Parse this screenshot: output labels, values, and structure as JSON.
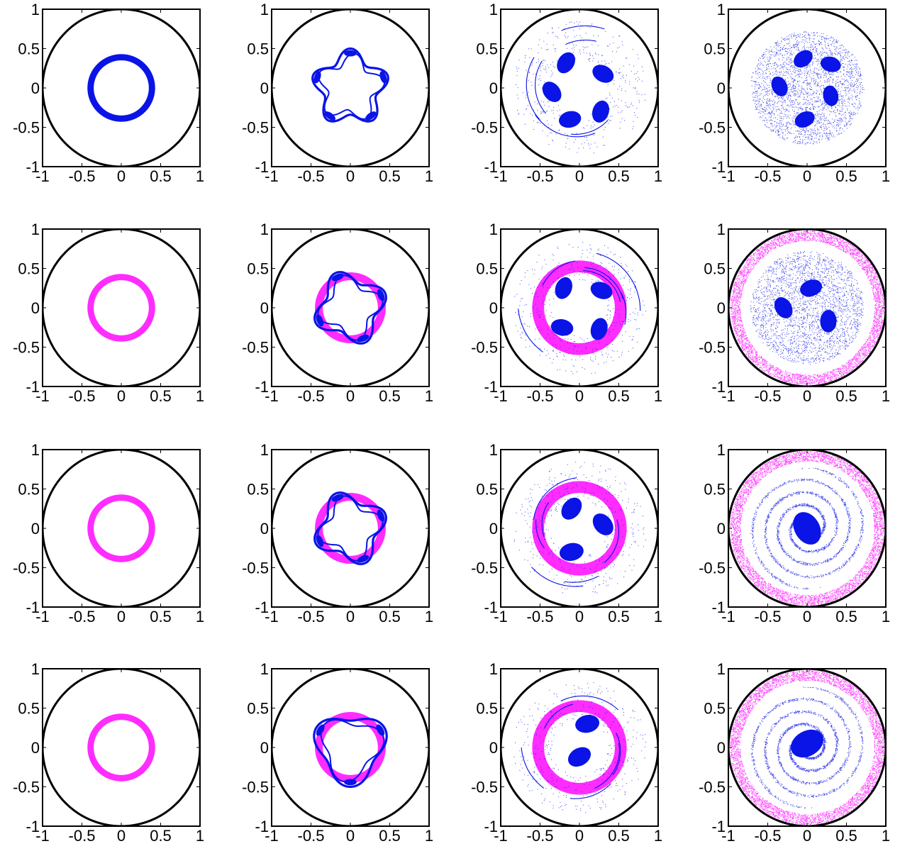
{
  "colors": {
    "vortex": "#0a14e6",
    "ring": "#ff2cff",
    "wall": "#000000",
    "axes": "#000000",
    "background": "#ffffff"
  },
  "chart_data": {
    "type": "scatter",
    "layout": "4x4 grid of panels",
    "xlim": [
      -1,
      1
    ],
    "ylim": [
      -1,
      1
    ],
    "xticks": [
      -1,
      -0.5,
      0,
      0.5,
      1
    ],
    "yticks": [
      -1,
      -0.5,
      0,
      0.5,
      1
    ],
    "xtick_labels": [
      "-1",
      "-0.5",
      "0",
      "0.5",
      "1"
    ],
    "ytick_labels": [
      "-1",
      "-0.5",
      "0",
      "0.5",
      "1"
    ],
    "grid": false,
    "boundary": {
      "shape": "circle",
      "center": [
        0,
        0
      ],
      "radius": 1
    },
    "panels": [
      {
        "row": 1,
        "col": 1,
        "ring": null,
        "vortex": {
          "kind": "annulus",
          "inner_radius": 0.35,
          "outer_radius": 0.43
        }
      },
      {
        "row": 1,
        "col": 2,
        "ring": null,
        "vortex": {
          "kind": "wavy_ring",
          "radius": 0.42,
          "modes": 5
        }
      },
      {
        "row": 1,
        "col": 3,
        "ring": null,
        "vortex": {
          "kind": "patches",
          "count": 5,
          "patch_radius": 0.13,
          "centers": [
            [
              -0.17,
              0.32
            ],
            [
              0.3,
              0.18
            ],
            [
              0.27,
              -0.3
            ],
            [
              -0.12,
              -0.4
            ],
            [
              -0.35,
              -0.05
            ]
          ],
          "filaments": "moderate"
        }
      },
      {
        "row": 1,
        "col": 4,
        "ring": null,
        "vortex": {
          "kind": "patches",
          "count": 5,
          "patch_radius": 0.12,
          "centers": [
            [
              -0.05,
              0.37
            ],
            [
              0.3,
              0.3
            ],
            [
              0.3,
              -0.1
            ],
            [
              -0.03,
              -0.4
            ],
            [
              -0.35,
              0.02
            ]
          ],
          "filaments": "dense cloud"
        }
      },
      {
        "row": 2,
        "col": 1,
        "ring": {
          "inner_radius": 0.35,
          "outer_radius": 0.43
        },
        "vortex": {
          "kind": "none"
        }
      },
      {
        "row": 2,
        "col": 2,
        "ring": {
          "inner_radius": 0.35,
          "outer_radius": 0.45
        },
        "vortex": {
          "kind": "wavy_ring",
          "radius": 0.4,
          "modes": 4
        }
      },
      {
        "row": 2,
        "col": 3,
        "ring": {
          "inner_radius": 0.45,
          "outer_radius": 0.6
        },
        "vortex": {
          "kind": "patches",
          "count": 4,
          "patch_radius": 0.13,
          "centers": [
            [
              -0.2,
              0.25
            ],
            [
              0.28,
              0.22
            ],
            [
              0.25,
              -0.27
            ],
            [
              -0.22,
              -0.25
            ]
          ],
          "filaments": "moderate"
        }
      },
      {
        "row": 2,
        "col": 4,
        "ring": {
          "inner_radius": 0.85,
          "outer_radius": 0.98
        },
        "vortex": {
          "kind": "patches",
          "count": 3,
          "patch_radius": 0.13,
          "centers": [
            [
              0.05,
              0.25
            ],
            [
              -0.3,
              0.0
            ],
            [
              0.27,
              -0.17
            ]
          ],
          "filaments": "dense cloud"
        }
      },
      {
        "row": 3,
        "col": 1,
        "ring": {
          "inner_radius": 0.35,
          "outer_radius": 0.43
        },
        "vortex": {
          "kind": "none"
        }
      },
      {
        "row": 3,
        "col": 2,
        "ring": {
          "inner_radius": 0.35,
          "outer_radius": 0.45
        },
        "vortex": {
          "kind": "wavy_ring",
          "radius": 0.4,
          "modes": 4
        }
      },
      {
        "row": 3,
        "col": 3,
        "ring": {
          "inner_radius": 0.45,
          "outer_radius": 0.6
        },
        "vortex": {
          "kind": "patches",
          "count": 3,
          "patch_radius": 0.14,
          "centers": [
            [
              -0.1,
              0.25
            ],
            [
              0.3,
              0.05
            ],
            [
              -0.1,
              -0.3
            ]
          ],
          "filaments": "moderate"
        }
      },
      {
        "row": 3,
        "col": 4,
        "ring": {
          "inner_radius": 0.85,
          "outer_radius": 0.98
        },
        "vortex": {
          "kind": "patches",
          "count": 1,
          "patch_radius": 0.2,
          "centers": [
            [
              0.0,
              0.0
            ]
          ],
          "filaments": "dense spiral"
        }
      },
      {
        "row": 4,
        "col": 1,
        "ring": {
          "inner_radius": 0.35,
          "outer_radius": 0.43
        },
        "vortex": {
          "kind": "none"
        }
      },
      {
        "row": 4,
        "col": 2,
        "ring": {
          "inner_radius": 0.35,
          "outer_radius": 0.45
        },
        "vortex": {
          "kind": "wavy_ring",
          "radius": 0.42,
          "modes": 3
        }
      },
      {
        "row": 4,
        "col": 3,
        "ring": {
          "inner_radius": 0.45,
          "outer_radius": 0.6
        },
        "vortex": {
          "kind": "patches",
          "count": 2,
          "patch_radius": 0.14,
          "centers": [
            [
              0.0,
              -0.12
            ],
            [
              0.1,
              0.3
            ]
          ],
          "filaments": "moderate"
        }
      },
      {
        "row": 4,
        "col": 4,
        "ring": {
          "inner_radius": 0.85,
          "outer_radius": 0.98
        },
        "vortex": {
          "kind": "patches",
          "count": 1,
          "patch_radius": 0.2,
          "centers": [
            [
              0.0,
              0.05
            ]
          ],
          "filaments": "dense spiral"
        }
      }
    ]
  }
}
